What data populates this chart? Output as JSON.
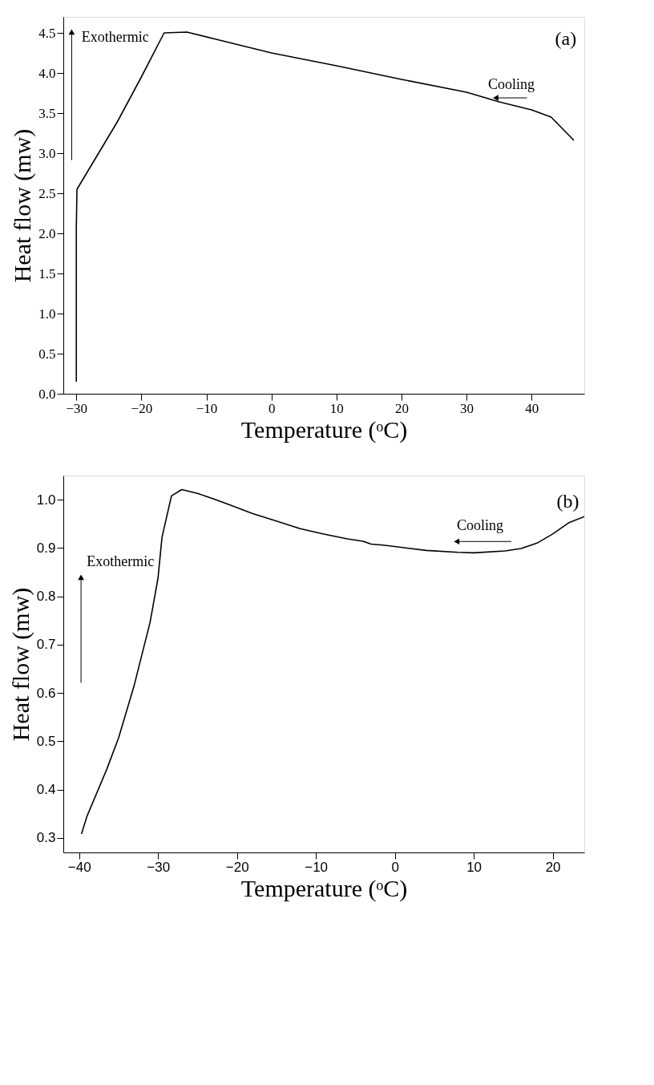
{
  "chart_data": [
    {
      "type": "line",
      "xlabel": "Temperature (ᵒC)",
      "ylabel": "Heat flow (mw)",
      "annotations": [
        "Exothermic",
        "Cooling",
        "(a)"
      ],
      "xlim": [
        -32,
        48.1
      ],
      "ylim": [
        0,
        4.7
      ],
      "xticks": [
        -30,
        -20,
        -10,
        0,
        10,
        20,
        30,
        40
      ],
      "yticks": [
        {
          "value": 0,
          "label": "0.0"
        },
        0.5,
        {
          "value": 1,
          "label": "1.0"
        },
        1.5,
        {
          "value": 2,
          "label": "2.0"
        },
        2.5,
        {
          "value": 3,
          "label": "3.0"
        },
        3.5,
        {
          "value": 4,
          "label": "4.0"
        },
        4.5
      ],
      "grid": false,
      "legend": false,
      "marker": "none",
      "line_style": "solid",
      "series": [
        {
          "color": "#000000",
          "x": [
            -30,
            -30,
            -29.9,
            -23.7,
            -20,
            -16.5,
            -13,
            -8,
            0,
            10,
            20,
            30,
            35,
            40,
            43,
            46.5
          ],
          "values": [
            0.15,
            2.08,
            2.55,
            3.39,
            3.95,
            4.5,
            4.51,
            4.41,
            4.25,
            4.09,
            3.92,
            3.76,
            3.64,
            3.54,
            3.45,
            3.16
          ]
        }
      ]
    },
    {
      "type": "line",
      "xlabel": "Temperature (ᵒC)",
      "ylabel": "Heat flow (mw)",
      "annotations": [
        "Exothermic",
        "Cooling",
        "(b)"
      ],
      "xlim": [
        -42,
        24
      ],
      "ylim": [
        0.27,
        1.05
      ],
      "xticks": [
        -40,
        -30,
        -20,
        -10,
        0,
        10,
        20
      ],
      "yticks": [
        0.3,
        0.4,
        0.5,
        0.6,
        0.7,
        0.8,
        0.9,
        {
          "value": 1,
          "label": "1.0"
        }
      ],
      "grid": false,
      "legend": false,
      "marker": "none",
      "line_style": "solid",
      "series": [
        {
          "color": "#000000",
          "x": [
            -39.7,
            -39,
            -36.5,
            -35,
            -33,
            -31,
            -30,
            -29.5,
            -28.3,
            -27,
            -25,
            -23,
            -21,
            -18,
            -15,
            -12,
            -9,
            -6,
            -4,
            -3,
            -1.5,
            0,
            4,
            8,
            10,
            14,
            16,
            18,
            20,
            22,
            24
          ],
          "values": [
            0.308,
            0.345,
            0.442,
            0.507,
            0.617,
            0.747,
            0.838,
            0.922,
            1.008,
            1.021,
            1.013,
            1.002,
            0.99,
            0.971,
            0.956,
            0.94,
            0.929,
            0.919,
            0.914,
            0.908,
            0.906,
            0.903,
            0.895,
            0.891,
            0.89,
            0.894,
            0.899,
            0.91,
            0.929,
            0.952,
            0.965
          ]
        }
      ]
    }
  ]
}
